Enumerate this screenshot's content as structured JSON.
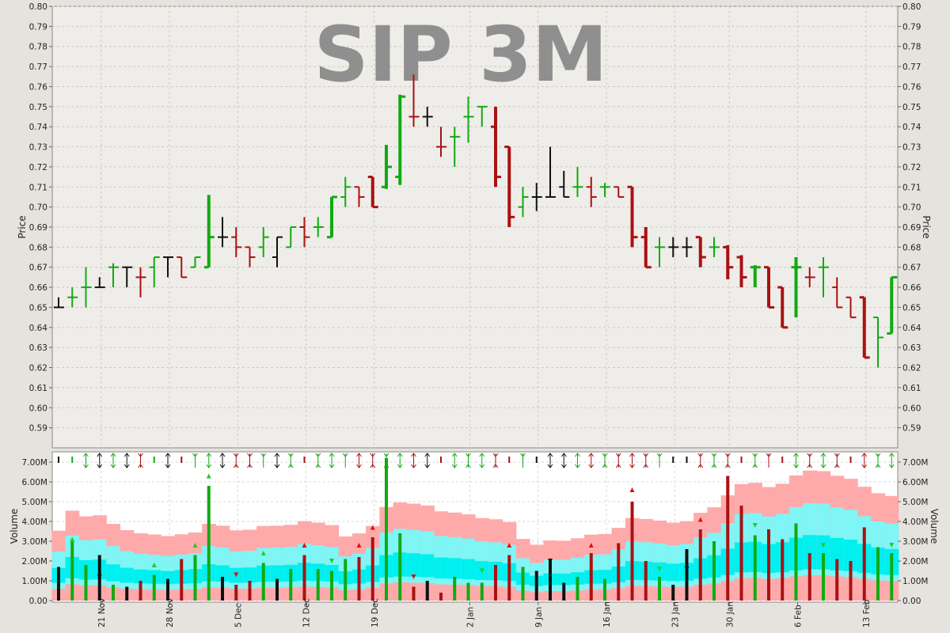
{
  "chart_data": {
    "type": "ohlc",
    "title": "SIP 3M",
    "colors": {
      "up": "#11aa11",
      "down": "#aa1111",
      "neutral": "#111111",
      "band_outer": "#ffaaaa",
      "band_mid": "#7ff5f5",
      "band_inner": "#00f0f0"
    },
    "price_axis": {
      "label": "Price",
      "min": 0.58,
      "max": 0.8,
      "ticks": [
        "0.80",
        "0.79",
        "0.78",
        "0.77",
        "0.76",
        "0.75",
        "0.74",
        "0.73",
        "0.72",
        "0.71",
        "0.70",
        "0.69",
        "0.68",
        "0.67",
        "0.66",
        "0.65",
        "0.64",
        "0.63",
        "0.62",
        "0.61",
        "0.60",
        "0.59"
      ]
    },
    "volume_axis": {
      "label": "Volume",
      "min": 0,
      "max": 7.4,
      "unit": "M",
      "ticks": [
        "7.00M",
        "6.00M",
        "5.00M",
        "4.00M",
        "3.00M",
        "2.00M",
        "1.00M",
        "0.00"
      ]
    },
    "x_labels": [
      "21 Nov",
      "28 Nov",
      "5 Dec",
      "12 Dec",
      "19 Dec",
      "2 Jan",
      "9 Jan",
      "16 Jan",
      "23 Jan",
      "30 Jan",
      "6 Feb",
      "13 Feb"
    ],
    "bars": [
      {
        "o": 0.65,
        "h": 0.655,
        "l": 0.65,
        "c": 0.65,
        "v": 1.7,
        "d": "n",
        "s": "n"
      },
      {
        "o": 0.655,
        "h": 0.66,
        "l": 0.65,
        "c": 0.655,
        "v": 3.0,
        "d": "u",
        "s": "n"
      },
      {
        "o": 0.66,
        "h": 0.67,
        "l": 0.65,
        "c": 0.66,
        "v": 1.8,
        "d": "u",
        "s": "ud"
      },
      {
        "o": 0.66,
        "h": 0.665,
        "l": 0.66,
        "c": 0.66,
        "v": 2.3,
        "d": "n",
        "s": "nn"
      },
      {
        "o": 0.67,
        "h": 0.672,
        "l": 0.66,
        "c": 0.67,
        "v": 0.8,
        "d": "u",
        "s": "ud"
      },
      {
        "o": 0.67,
        "h": 0.67,
        "l": 0.66,
        "c": 0.67,
        "v": 0.7,
        "d": "n",
        "s": "nn"
      },
      {
        "o": 0.665,
        "h": 0.67,
        "l": 0.655,
        "c": 0.665,
        "v": 1.0,
        "d": "d",
        "s": "du"
      },
      {
        "o": 0.67,
        "h": 0.675,
        "l": 0.66,
        "c": 0.675,
        "v": 1.3,
        "d": "u",
        "s": "n"
      },
      {
        "o": 0.675,
        "h": 0.675,
        "l": 0.665,
        "c": 0.675,
        "v": 1.1,
        "d": "n",
        "s": "nn"
      },
      {
        "o": 0.675,
        "h": 0.675,
        "l": 0.665,
        "c": 0.665,
        "v": 2.1,
        "d": "d",
        "s": "n"
      },
      {
        "o": 0.67,
        "h": 0.675,
        "l": 0.67,
        "c": 0.675,
        "v": 2.3,
        "d": "u",
        "s": "d"
      },
      {
        "o": 0.67,
        "h": 0.706,
        "l": 0.67,
        "c": 0.685,
        "v": 5.8,
        "d": "u",
        "s": "ud"
      },
      {
        "o": 0.685,
        "h": 0.695,
        "l": 0.68,
        "c": 0.685,
        "v": 1.2,
        "d": "n",
        "s": "nn"
      },
      {
        "o": 0.685,
        "h": 0.69,
        "l": 0.675,
        "c": 0.68,
        "v": 0.8,
        "d": "d",
        "s": "du"
      },
      {
        "o": 0.68,
        "h": 0.68,
        "l": 0.67,
        "c": 0.675,
        "v": 1.0,
        "d": "d",
        "s": "du"
      },
      {
        "o": 0.68,
        "h": 0.69,
        "l": 0.675,
        "c": 0.685,
        "v": 1.9,
        "d": "u",
        "s": "d"
      },
      {
        "o": 0.675,
        "h": 0.685,
        "l": 0.67,
        "c": 0.685,
        "v": 1.1,
        "d": "n",
        "s": "un"
      },
      {
        "o": 0.68,
        "h": 0.69,
        "l": 0.68,
        "c": 0.69,
        "v": 1.6,
        "d": "u",
        "s": "du"
      },
      {
        "o": 0.69,
        "h": 0.695,
        "l": 0.68,
        "c": 0.685,
        "v": 2.3,
        "d": "d",
        "s": "n"
      },
      {
        "o": 0.69,
        "h": 0.695,
        "l": 0.685,
        "c": 0.69,
        "v": 1.6,
        "d": "u",
        "s": "du"
      },
      {
        "o": 0.685,
        "h": 0.705,
        "l": 0.685,
        "c": 0.705,
        "v": 1.5,
        "d": "u",
        "s": "ud"
      },
      {
        "o": 0.705,
        "h": 0.715,
        "l": 0.7,
        "c": 0.71,
        "v": 2.1,
        "d": "u",
        "s": "d"
      },
      {
        "o": 0.71,
        "h": 0.71,
        "l": 0.7,
        "c": 0.705,
        "v": 2.2,
        "d": "d",
        "s": "ud"
      },
      {
        "o": 0.715,
        "h": 0.715,
        "l": 0.7,
        "c": 0.7,
        "v": 3.2,
        "d": "d",
        "s": "du"
      },
      {
        "o": 0.71,
        "h": 0.731,
        "l": 0.709,
        "c": 0.72,
        "v": 7.2,
        "d": "u",
        "s": "du"
      },
      {
        "o": 0.715,
        "h": 0.756,
        "l": 0.711,
        "c": 0.755,
        "v": 3.4,
        "d": "u",
        "s": "ud"
      },
      {
        "o": 0.745,
        "h": 0.766,
        "l": 0.74,
        "c": 0.745,
        "v": 0.7,
        "d": "d",
        "s": "ud"
      },
      {
        "o": 0.745,
        "h": 0.75,
        "l": 0.74,
        "c": 0.745,
        "v": 1.0,
        "d": "n",
        "s": "nn"
      },
      {
        "o": 0.73,
        "h": 0.74,
        "l": 0.725,
        "c": 0.73,
        "v": 0.4,
        "d": "d",
        "s": "n"
      },
      {
        "o": 0.735,
        "h": 0.74,
        "l": 0.72,
        "c": 0.735,
        "v": 1.2,
        "d": "u",
        "s": "ud"
      },
      {
        "o": 0.745,
        "h": 0.755,
        "l": 0.732,
        "c": 0.745,
        "v": 0.9,
        "d": "u",
        "s": "du"
      },
      {
        "o": 0.75,
        "h": 0.75,
        "l": 0.74,
        "c": 0.75,
        "v": 0.9,
        "d": "u",
        "s": "ud"
      },
      {
        "o": 0.74,
        "h": 0.75,
        "l": 0.71,
        "c": 0.715,
        "v": 1.8,
        "d": "d",
        "s": "du"
      },
      {
        "o": 0.73,
        "h": 0.73,
        "l": 0.69,
        "c": 0.695,
        "v": 2.3,
        "d": "d",
        "s": "n"
      },
      {
        "o": 0.7,
        "h": 0.71,
        "l": 0.695,
        "c": 0.705,
        "v": 1.7,
        "d": "u",
        "s": "d"
      },
      {
        "o": 0.705,
        "h": 0.712,
        "l": 0.698,
        "c": 0.705,
        "v": 1.5,
        "d": "n",
        "s": "n"
      },
      {
        "o": 0.705,
        "h": 0.73,
        "l": 0.705,
        "c": 0.705,
        "v": 2.1,
        "d": "n",
        "s": "un"
      },
      {
        "o": 0.71,
        "h": 0.718,
        "l": 0.705,
        "c": 0.705,
        "v": 0.9,
        "d": "n",
        "s": "nn"
      },
      {
        "o": 0.71,
        "h": 0.72,
        "l": 0.705,
        "c": 0.71,
        "v": 1.2,
        "d": "u",
        "s": "ud"
      },
      {
        "o": 0.71,
        "h": 0.715,
        "l": 0.7,
        "c": 0.705,
        "v": 2.4,
        "d": "d",
        "s": "ud"
      },
      {
        "o": 0.71,
        "h": 0.712,
        "l": 0.705,
        "c": 0.71,
        "v": 1.1,
        "d": "u",
        "s": "du"
      },
      {
        "o": 0.71,
        "h": 0.71,
        "l": 0.705,
        "c": 0.705,
        "v": 2.9,
        "d": "d",
        "s": "du"
      },
      {
        "o": 0.71,
        "h": 0.71,
        "l": 0.68,
        "c": 0.685,
        "v": 5.0,
        "d": "d",
        "s": "ud"
      },
      {
        "o": 0.685,
        "h": 0.69,
        "l": 0.67,
        "c": 0.67,
        "v": 2.0,
        "d": "d",
        "s": "du"
      },
      {
        "o": 0.68,
        "h": 0.685,
        "l": 0.67,
        "c": 0.68,
        "v": 1.2,
        "d": "u",
        "s": "d"
      },
      {
        "o": 0.68,
        "h": 0.685,
        "l": 0.675,
        "c": 0.68,
        "v": 0.8,
        "d": "n",
        "s": "n"
      },
      {
        "o": 0.68,
        "h": 0.685,
        "l": 0.675,
        "c": 0.68,
        "v": 2.6,
        "d": "n",
        "s": "n"
      },
      {
        "o": 0.685,
        "h": 0.685,
        "l": 0.67,
        "c": 0.675,
        "v": 3.6,
        "d": "d",
        "s": "du"
      },
      {
        "o": 0.68,
        "h": 0.685,
        "l": 0.675,
        "c": 0.68,
        "v": 3.0,
        "d": "u",
        "s": "du"
      },
      {
        "o": 0.68,
        "h": 0.681,
        "l": 0.664,
        "c": 0.67,
        "v": 6.3,
        "d": "d",
        "s": "du"
      },
      {
        "o": 0.675,
        "h": 0.676,
        "l": 0.66,
        "c": 0.665,
        "v": 4.8,
        "d": "d",
        "s": "n"
      },
      {
        "o": 0.67,
        "h": 0.671,
        "l": 0.66,
        "c": 0.67,
        "v": 3.3,
        "d": "u",
        "s": "du"
      },
      {
        "o": 0.67,
        "h": 0.67,
        "l": 0.65,
        "c": 0.65,
        "v": 3.6,
        "d": "d",
        "s": "d"
      },
      {
        "o": 0.66,
        "h": 0.66,
        "l": 0.64,
        "c": 0.64,
        "v": 3.1,
        "d": "d",
        "s": "n"
      },
      {
        "o": 0.67,
        "h": 0.675,
        "l": 0.645,
        "c": 0.67,
        "v": 3.9,
        "d": "u",
        "s": "ud"
      },
      {
        "o": 0.665,
        "h": 0.67,
        "l": 0.66,
        "c": 0.665,
        "v": 2.4,
        "d": "d",
        "s": "du"
      },
      {
        "o": 0.67,
        "h": 0.675,
        "l": 0.655,
        "c": 0.67,
        "v": 2.4,
        "d": "u",
        "s": "ud"
      },
      {
        "o": 0.66,
        "h": 0.665,
        "l": 0.65,
        "c": 0.65,
        "v": 2.1,
        "d": "d",
        "s": "du"
      },
      {
        "o": 0.655,
        "h": 0.655,
        "l": 0.645,
        "c": 0.645,
        "v": 2.0,
        "d": "d",
        "s": "n"
      },
      {
        "o": 0.655,
        "h": 0.655,
        "l": 0.625,
        "c": 0.625,
        "v": 3.7,
        "d": "d",
        "s": "ud"
      },
      {
        "o": 0.645,
        "h": 0.645,
        "l": 0.62,
        "c": 0.635,
        "v": 2.7,
        "d": "u",
        "s": "du"
      },
      {
        "o": 0.637,
        "h": 0.665,
        "l": 0.637,
        "c": 0.665,
        "v": 2.4,
        "d": "u",
        "s": "ud"
      }
    ],
    "volume_markers": [
      {
        "bar": 1,
        "dir": "up",
        "value": 3.1
      },
      {
        "bar": 3,
        "dir": "down",
        "value": 1.2
      },
      {
        "bar": 7,
        "dir": "up",
        "value": 1.8
      },
      {
        "bar": 10,
        "dir": "up",
        "value": 2.8
      },
      {
        "bar": 11,
        "dir": "up",
        "value": 6.3
      },
      {
        "bar": 13,
        "dir": "down",
        "value": 1.3
      },
      {
        "bar": 15,
        "dir": "up",
        "value": 2.4
      },
      {
        "bar": 18,
        "dir": "up",
        "value": 2.8
      },
      {
        "bar": 20,
        "dir": "down",
        "value": 2.0
      },
      {
        "bar": 22,
        "dir": "up",
        "value": 2.8
      },
      {
        "bar": 23,
        "dir": "up",
        "value": 3.7
      },
      {
        "bar": 26,
        "dir": "down",
        "value": 1.2
      },
      {
        "bar": 31,
        "dir": "down",
        "value": 1.5
      },
      {
        "bar": 33,
        "dir": "up",
        "value": 2.8
      },
      {
        "bar": 36,
        "dir": "down",
        "value": 2.0
      },
      {
        "bar": 39,
        "dir": "up",
        "value": 2.8
      },
      {
        "bar": 42,
        "dir": "up",
        "value": 5.6
      },
      {
        "bar": 44,
        "dir": "down",
        "value": 1.6
      },
      {
        "bar": 46,
        "dir": "down",
        "value": 1.6
      },
      {
        "bar": 47,
        "dir": "up",
        "value": 4.1
      },
      {
        "bar": 51,
        "dir": "down",
        "value": 3.8
      },
      {
        "bar": 56,
        "dir": "down",
        "value": 2.8
      },
      {
        "bar": 61,
        "dir": "down",
        "value": 2.8
      }
    ]
  }
}
